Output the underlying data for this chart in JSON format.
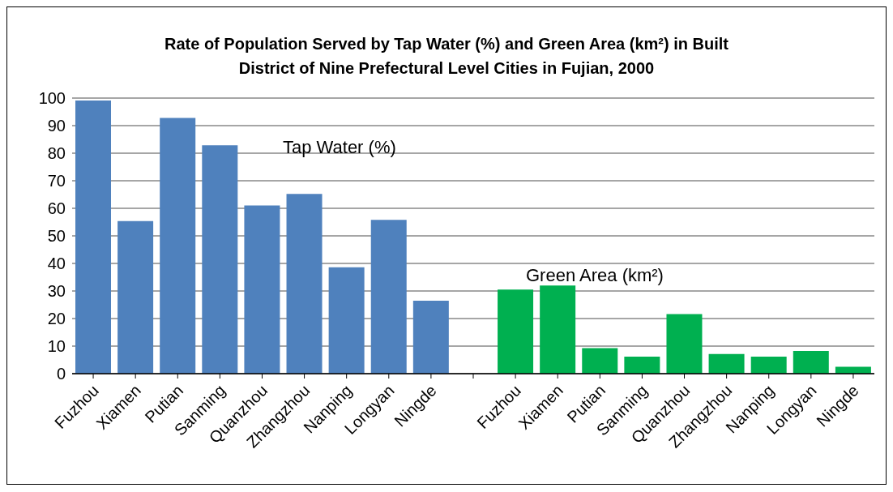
{
  "chart_data": {
    "type": "bar",
    "title": "Rate of Population Served by Tap Water (%) and Green Area (km²) in Built District of Nine Prefectural Level Cities in Fujian, 2000",
    "categories": [
      "Fuzhou",
      "Xiamen",
      "Putian",
      "Sanming",
      "Quanzhou",
      "Zhangzhou",
      "Nanping",
      "Longyan",
      "Ningde",
      null,
      "Fuzhou",
      "Xiamen",
      "Putian",
      "Sanming",
      "Quanzhou",
      "Zhangzhou",
      "Nanping",
      "Longyan",
      "Ningde"
    ],
    "series": [
      {
        "name": "Tap Water (%)",
        "color": "#4f81bd",
        "values": [
          99.1,
          55.4,
          92.8,
          82.9,
          61.0,
          65.2,
          38.6,
          55.8,
          26.5,
          null,
          null,
          null,
          null,
          null,
          null,
          null,
          null,
          null,
          null
        ]
      },
      {
        "name": "Green Area (km²)",
        "color": "#00b050",
        "values": [
          null,
          null,
          null,
          null,
          null,
          null,
          null,
          null,
          null,
          null,
          30.5,
          32.0,
          9.3,
          6.2,
          21.6,
          7.1,
          6.2,
          8.2,
          2.5
        ]
      }
    ],
    "ylim": [
      0,
      100
    ],
    "yticks": [
      0,
      10,
      20,
      30,
      40,
      50,
      60,
      70,
      80,
      90,
      100
    ],
    "grid": "y"
  }
}
